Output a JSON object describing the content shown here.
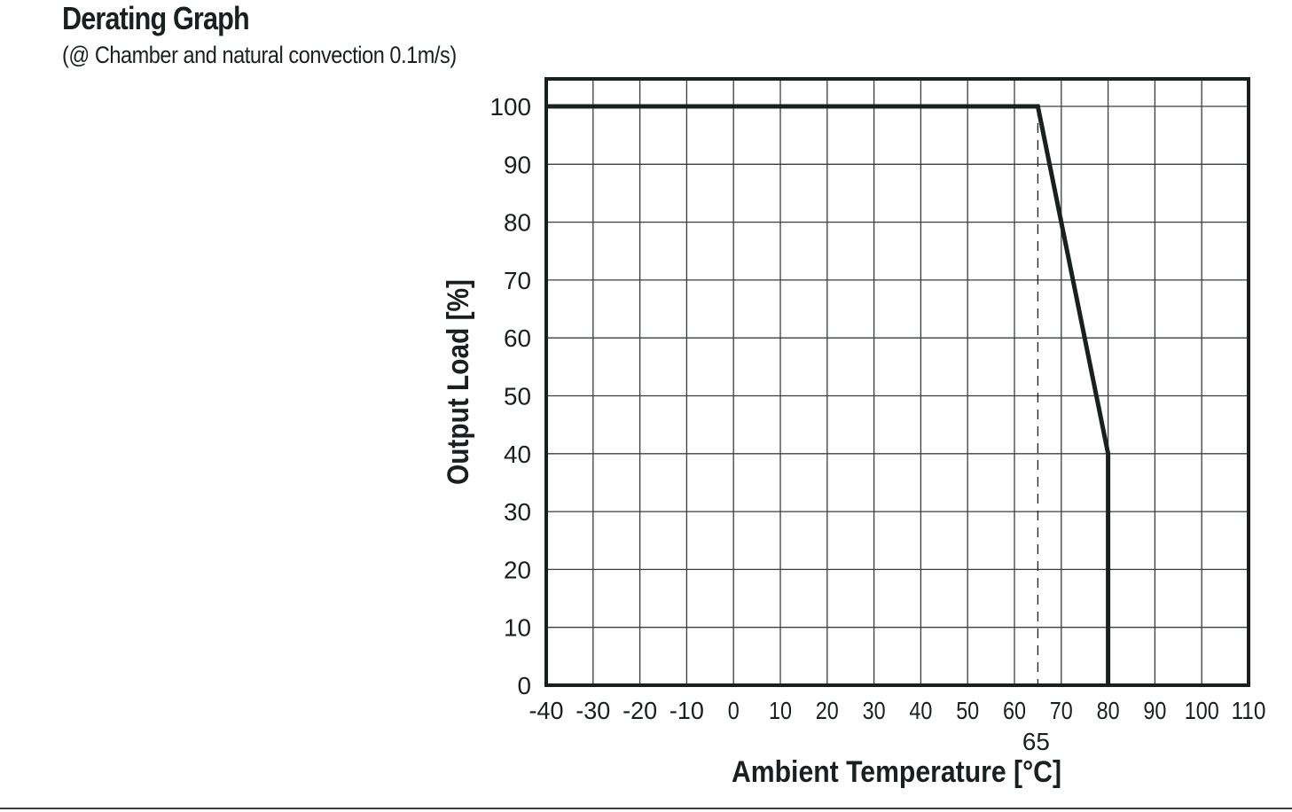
{
  "header": {
    "title": "Derating Graph",
    "subtitle": "(@ Chamber and natural convection 0.1m/s)"
  },
  "colors": {
    "ink": "#1a1f1f",
    "grid": "#3a3f3f"
  },
  "chart_data": {
    "type": "line",
    "title": "Derating Graph",
    "subtitle": "(@ Chamber and natural convection 0.1m/s)",
    "xlabel": "Ambient Temperature [°C]",
    "ylabel": "Output Load [%]",
    "xlim": [
      -40,
      110
    ],
    "ylim": [
      0,
      100
    ],
    "x_ticks": [
      -40,
      -30,
      -20,
      -10,
      0,
      10,
      20,
      30,
      40,
      50,
      60,
      70,
      80,
      90,
      100,
      110
    ],
    "y_ticks": [
      0,
      10,
      20,
      30,
      40,
      50,
      60,
      70,
      80,
      90,
      100
    ],
    "grid": true,
    "series": [
      {
        "x": [
          -40,
          65,
          80,
          80
        ],
        "y": [
          100,
          100,
          40,
          0
        ]
      }
    ],
    "annotations": [
      {
        "type": "vline-dashed",
        "x": 65,
        "label": "65"
      }
    ]
  }
}
